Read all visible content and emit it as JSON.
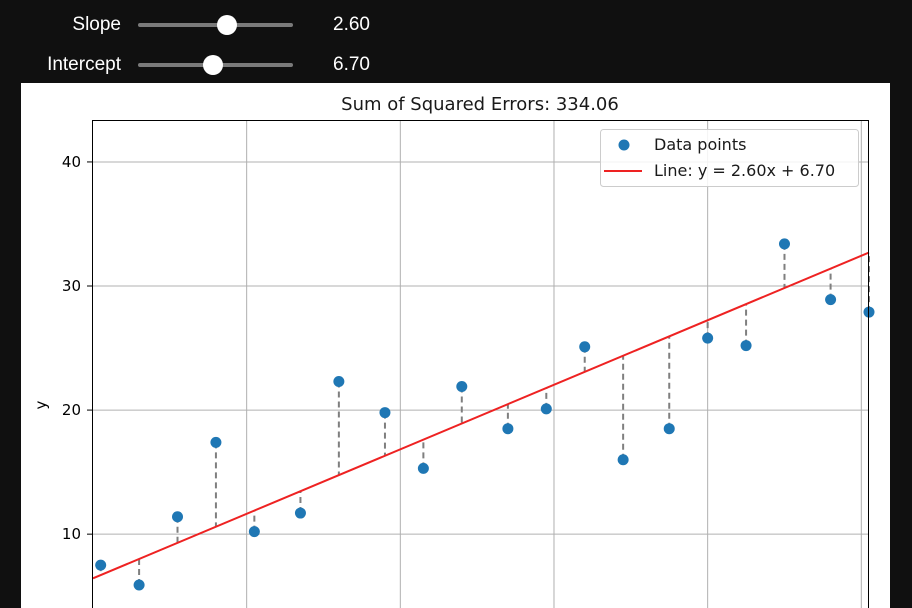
{
  "controls": {
    "slope": {
      "label": "Slope",
      "value": 2.6,
      "value_text": "2.60",
      "min": -2,
      "max": 6
    },
    "intercept": {
      "label": "Intercept",
      "value": 6.7,
      "value_text": "6.70",
      "min": -15,
      "max": 30
    }
  },
  "chart_data": {
    "type": "scatter",
    "title": "Sum of Squared Errors: 334.06",
    "xlabel": "",
    "ylabel": "y",
    "xlim": [
      -0.1,
      10.0
    ],
    "ylim": [
      3.0,
      43.3
    ],
    "yticks": [
      10,
      20,
      30,
      40
    ],
    "xgrid": [
      1.9,
      3.9,
      5.9,
      7.9,
      9.9
    ],
    "grid": true,
    "legend_position": "top-right",
    "points": {
      "x": [
        0.0,
        0.5,
        1.0,
        1.5,
        2.0,
        2.6,
        3.1,
        3.7,
        4.2,
        4.7,
        5.3,
        5.8,
        6.3,
        6.8,
        7.4,
        7.9,
        8.4,
        8.9,
        9.5,
        10.0
      ],
      "y": [
        7.5,
        5.9,
        11.4,
        17.4,
        10.2,
        11.7,
        22.3,
        19.8,
        15.3,
        21.9,
        18.5,
        20.1,
        25.1,
        16.0,
        18.5,
        25.8,
        25.2,
        33.4,
        28.9,
        27.9
      ]
    },
    "line": {
      "slope": 2.6,
      "intercept": 6.7,
      "color": "#ee2222"
    },
    "series": [
      {
        "name": "Data points",
        "kind": "scatter",
        "color": "#1f77b4"
      },
      {
        "name": "Line: y = 2.60x + 6.70",
        "kind": "line",
        "color": "#ee2222"
      }
    ],
    "residual_color": "#7f7f7f"
  }
}
